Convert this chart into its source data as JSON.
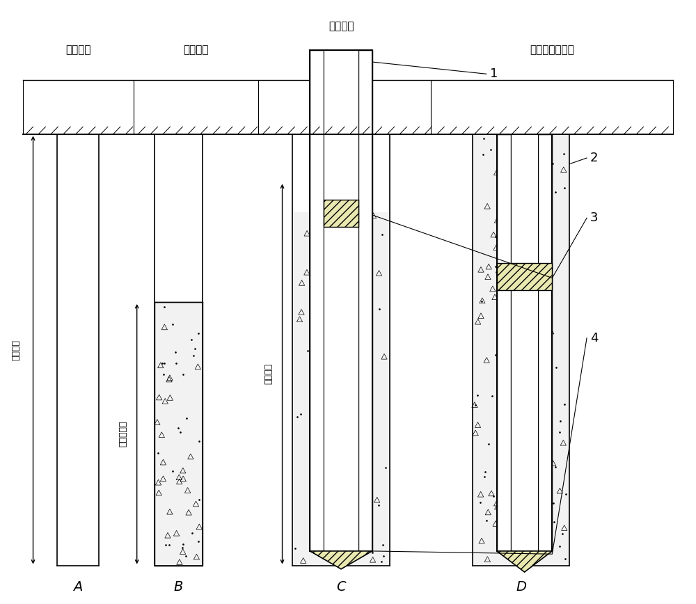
{
  "bg_color": "#ffffff",
  "title_top": "管桩植入",
  "label_A": "A",
  "label_B": "B",
  "label_C": "C",
  "label_D": "D",
  "text_kuojing": "扩径引孔",
  "text_chongying": "充盈灌注",
  "text_fuhe": "复合截面空心桩",
  "text_yinkong_depth": "引孔深度",
  "text_liajiang_depth_B": "灌浆桩深度",
  "text_shangbu_depth": "上桩长度",
  "note_1": "1",
  "note_2": "2",
  "note_3": "3",
  "note_4": "4",
  "fig_width": 10.0,
  "fig_height": 8.68
}
